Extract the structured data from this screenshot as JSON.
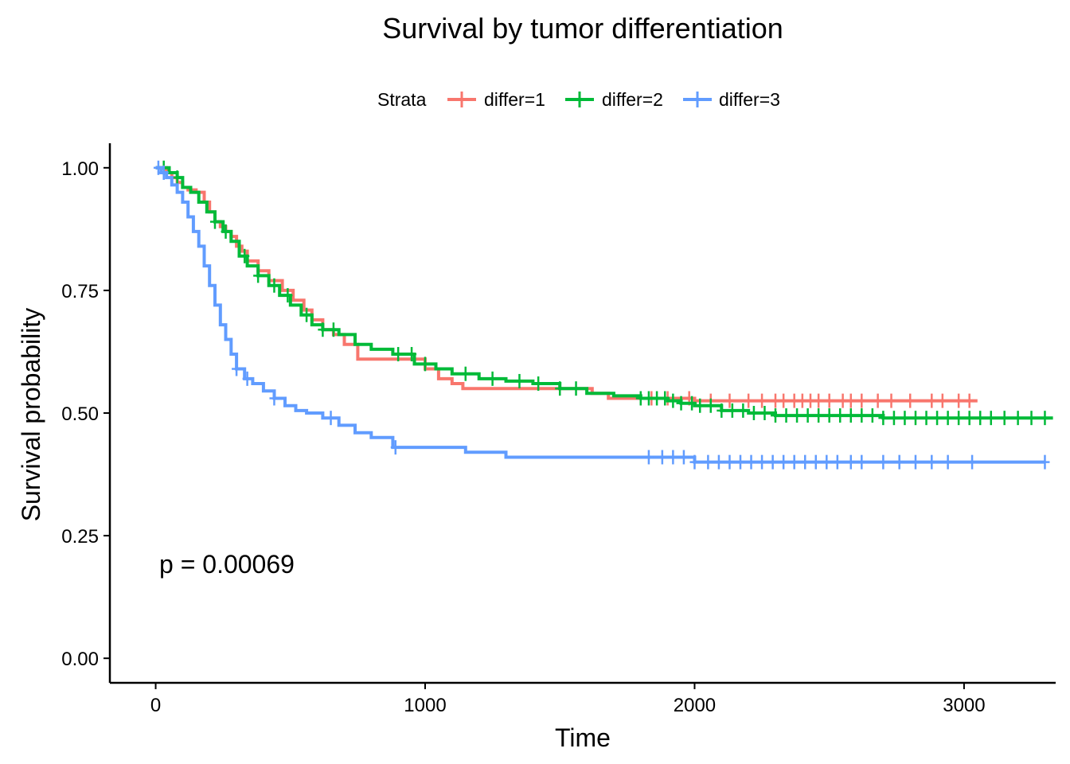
{
  "chart_data": {
    "type": "line",
    "title": "Survival by tumor differentiation",
    "xlabel": "Time",
    "ylabel": "Survival probability",
    "xlim": [
      -170,
      3340
    ],
    "ylim": [
      -0.05,
      1.05
    ],
    "x_ticks": [
      0,
      1000,
      2000,
      3000
    ],
    "x_tick_labels": [
      "0",
      "1000",
      "2000",
      "3000"
    ],
    "y_ticks": [
      0,
      0.25,
      0.5,
      0.75,
      1.0
    ],
    "y_tick_labels": [
      "0.00",
      "0.25",
      "0.50",
      "0.75",
      "1.00"
    ],
    "grid": false,
    "legend": {
      "title": "Strata",
      "position": "top"
    },
    "annotation": "p = 0.00069",
    "series": [
      {
        "name": "differ=1",
        "color": "#F8766D",
        "x": [
          0,
          40,
          60,
          80,
          100,
          120,
          150,
          180,
          200,
          220,
          240,
          260,
          280,
          300,
          320,
          340,
          380,
          420,
          470,
          510,
          550,
          580,
          620,
          660,
          700,
          750,
          820,
          900,
          1000,
          1050,
          1100,
          1140,
          1350,
          1550,
          1620,
          1680,
          2000,
          3050
        ],
        "y": [
          1.0,
          0.99,
          0.98,
          0.97,
          0.96,
          0.955,
          0.95,
          0.93,
          0.91,
          0.89,
          0.88,
          0.87,
          0.86,
          0.84,
          0.83,
          0.81,
          0.79,
          0.77,
          0.75,
          0.73,
          0.71,
          0.69,
          0.67,
          0.66,
          0.64,
          0.61,
          0.61,
          0.61,
          0.59,
          0.57,
          0.56,
          0.55,
          0.55,
          0.55,
          0.54,
          0.53,
          0.525,
          0.525
        ],
        "censor_x": [
          1840,
          1900,
          1980,
          2060,
          2130,
          2200,
          2250,
          2300,
          2330,
          2370,
          2400,
          2430,
          2460,
          2500,
          2550,
          2580,
          2620,
          2680,
          2730,
          2800,
          2880,
          2920,
          2980,
          3020
        ]
      },
      {
        "name": "differ=2",
        "color": "#00BA38",
        "x": [
          0,
          50,
          80,
          100,
          130,
          160,
          190,
          220,
          250,
          280,
          310,
          340,
          380,
          420,
          460,
          500,
          540,
          580,
          620,
          680,
          740,
          800,
          880,
          960,
          1040,
          1100,
          1200,
          1300,
          1400,
          1500,
          1600,
          1700,
          1800,
          1900,
          1950,
          2000,
          2100,
          2200,
          2300,
          2500,
          2700,
          3000,
          3330
        ],
        "y": [
          1.0,
          0.99,
          0.98,
          0.96,
          0.95,
          0.93,
          0.91,
          0.89,
          0.87,
          0.85,
          0.82,
          0.8,
          0.78,
          0.76,
          0.74,
          0.72,
          0.7,
          0.68,
          0.67,
          0.66,
          0.64,
          0.63,
          0.62,
          0.6,
          0.59,
          0.58,
          0.57,
          0.565,
          0.56,
          0.55,
          0.54,
          0.535,
          0.53,
          0.525,
          0.52,
          0.515,
          0.505,
          0.5,
          0.495,
          0.495,
          0.49,
          0.49,
          0.49
        ],
        "censor_x": [
          30,
          80,
          220,
          260,
          330,
          380,
          440,
          490,
          560,
          620,
          660,
          900,
          950,
          1000,
          1150,
          1250,
          1350,
          1420,
          1500,
          1560,
          1800,
          1830,
          1860,
          1890,
          1920,
          1950,
          1990,
          2020,
          2060,
          2100,
          2140,
          2180,
          2220,
          2260,
          2300,
          2340,
          2380,
          2420,
          2460,
          2500,
          2540,
          2580,
          2620,
          2660,
          2700,
          2740,
          2780,
          2820,
          2860,
          2900,
          2940,
          2980,
          3020,
          3060,
          3100,
          3150,
          3200,
          3250,
          3300
        ]
      },
      {
        "name": "differ=3",
        "color": "#619CFF",
        "x": [
          0,
          20,
          40,
          60,
          80,
          100,
          120,
          140,
          160,
          180,
          200,
          220,
          240,
          260,
          280,
          300,
          330,
          360,
          400,
          440,
          480,
          520,
          560,
          620,
          680,
          740,
          800,
          880,
          1000,
          1100,
          1150,
          1250,
          1300,
          2000,
          3300
        ],
        "y": [
          1.0,
          0.99,
          0.98,
          0.965,
          0.95,
          0.93,
          0.9,
          0.87,
          0.84,
          0.8,
          0.76,
          0.72,
          0.68,
          0.65,
          0.62,
          0.59,
          0.57,
          0.56,
          0.545,
          0.53,
          0.515,
          0.505,
          0.5,
          0.49,
          0.475,
          0.46,
          0.45,
          0.43,
          0.43,
          0.43,
          0.42,
          0.42,
          0.41,
          0.4,
          0.4
        ],
        "censor_x": [
          10,
          30,
          300,
          340,
          440,
          650,
          890,
          1830,
          1880,
          1920,
          1960,
          2000,
          2050,
          2090,
          2130,
          2170,
          2210,
          2250,
          2290,
          2330,
          2370,
          2410,
          2450,
          2490,
          2530,
          2580,
          2620,
          2700,
          2760,
          2820,
          2880,
          2940,
          3030,
          3300
        ]
      }
    ]
  }
}
